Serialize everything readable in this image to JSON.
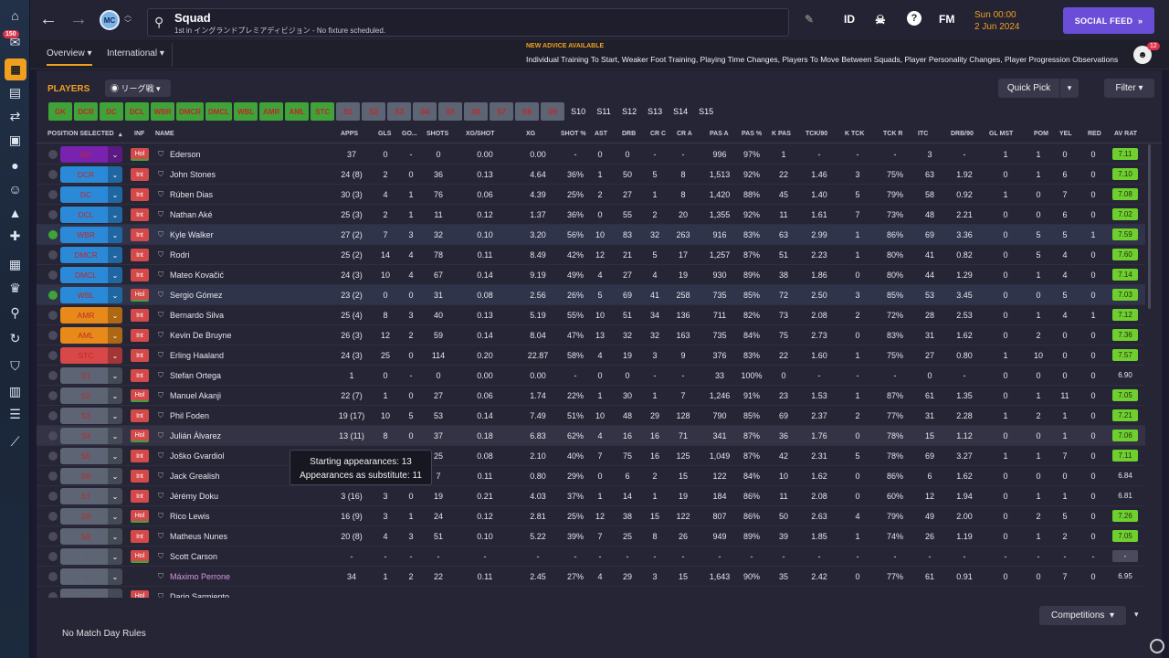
{
  "sidebar": {
    "badge": "150",
    "icons": [
      "home-icon",
      "inbox-icon",
      "squad-icon",
      "tactics-icon",
      "transfer-icon",
      "report-icon",
      "circle-icon",
      "staff-icon",
      "scouting-icon",
      "medical-icon",
      "calendar-icon",
      "trophy-icon",
      "search-icon",
      "refresh-icon",
      "club-icon",
      "finance-icon",
      "news-icon",
      "trend-icon"
    ]
  },
  "topbar": {
    "title": "Squad",
    "subtitle": "1st in イングランドプレミアディビジョン - No fixture scheduled.",
    "id_label": "ID",
    "fm_label": "FM",
    "help_label": "?",
    "date_line1": "Sun 00:00",
    "date_line2": "2 Jun 2024",
    "social_label": "SOCIAL FEED",
    "social_arrow": "»"
  },
  "subbar": {
    "tabs": [
      {
        "label": "Overview"
      },
      {
        "label": "International"
      }
    ],
    "advice_title": "NEW ADVICE AVAILABLE",
    "advice_text": "Individual Training To Start, Weaker Foot Training, Playing Time Changes, Players To Move Between Squads, Player Personality Changes, Player Progression Observations",
    "advice_count": "12"
  },
  "panel": {
    "title": "PLAYERS",
    "view_select": "リーグ戦",
    "quick_pick": "Quick Pick",
    "filter": "Filter",
    "footer": "No Match Day Rules",
    "competitions": "Competitions"
  },
  "position_chips": [
    {
      "label": "GK",
      "style": "green"
    },
    {
      "label": "DCR",
      "style": "green"
    },
    {
      "label": "DC",
      "style": "green"
    },
    {
      "label": "DCL",
      "style": "green"
    },
    {
      "label": "WBR",
      "style": "green"
    },
    {
      "label": "DMCR",
      "style": "green"
    },
    {
      "label": "DMCL",
      "style": "green"
    },
    {
      "label": "WBL",
      "style": "green"
    },
    {
      "label": "AMR",
      "style": "green"
    },
    {
      "label": "AML",
      "style": "green"
    },
    {
      "label": "STC",
      "style": "green"
    },
    {
      "label": "S1",
      "style": "grey"
    },
    {
      "label": "S2",
      "style": "grey"
    },
    {
      "label": "S3",
      "style": "grey"
    },
    {
      "label": "S4",
      "style": "grey"
    },
    {
      "label": "S5",
      "style": "grey"
    },
    {
      "label": "S6",
      "style": "grey"
    },
    {
      "label": "S7",
      "style": "grey"
    },
    {
      "label": "S8",
      "style": "grey"
    },
    {
      "label": "S9",
      "style": "grey"
    },
    {
      "label": "S10",
      "style": "dark"
    },
    {
      "label": "S11",
      "style": "dark"
    },
    {
      "label": "S12",
      "style": "dark"
    },
    {
      "label": "S13",
      "style": "dark"
    },
    {
      "label": "S14",
      "style": "dark"
    },
    {
      "label": "S15",
      "style": "dark"
    }
  ],
  "columns": [
    "POSITION SELECTED",
    "INF",
    "NAME",
    "APPS",
    "GLS",
    "GO...",
    "SHOTS",
    "XG/SHOT",
    "XG",
    "SHOT %",
    "AST",
    "DRB",
    "CR C",
    "CR A",
    "PAS A",
    "PAS %",
    "K PAS",
    "TCK/90",
    "K TCK",
    "TCK R",
    "ITC",
    "DRB/90",
    "GL MST",
    "POM",
    "YEL",
    "RED",
    "AV RAT"
  ],
  "players": [
    {
      "pos": "GK",
      "pos_color": "#7a22b0",
      "inf": "Hol",
      "name": "Ederson",
      "stats": [
        "37",
        "0",
        "-",
        "0",
        "0.00",
        "0.00",
        "-",
        "0",
        "0",
        "-",
        "-",
        "996",
        "97%",
        "1",
        "-",
        "-",
        "-",
        "3",
        "-",
        "1",
        "1",
        "0",
        "0"
      ],
      "rating": "7.11",
      "rstyle": "good"
    },
    {
      "pos": "DCR",
      "pos_color": "#2b8ad8",
      "inf": "Int",
      "name": "John Stones",
      "stats": [
        "24 (8)",
        "2",
        "0",
        "36",
        "0.13",
        "4.64",
        "36%",
        "1",
        "50",
        "5",
        "8",
        "1,513",
        "92%",
        "22",
        "1.46",
        "3",
        "75%",
        "63",
        "1.92",
        "0",
        "1",
        "6",
        "0"
      ],
      "rating": "7.10",
      "rstyle": "good"
    },
    {
      "pos": "DC",
      "pos_color": "#2b8ad8",
      "inf": "Int",
      "name": "Rúben Dias",
      "stats": [
        "30 (3)",
        "4",
        "1",
        "76",
        "0.06",
        "4.39",
        "25%",
        "2",
        "27",
        "1",
        "8",
        "1,420",
        "88%",
        "45",
        "1.40",
        "5",
        "79%",
        "58",
        "0.92",
        "1",
        "0",
        "7",
        "0"
      ],
      "rating": "7.08",
      "rstyle": "good"
    },
    {
      "pos": "DCL",
      "pos_color": "#2b8ad8",
      "inf": "Int",
      "name": "Nathan Aké",
      "stats": [
        "25 (3)",
        "2",
        "1",
        "11",
        "0.12",
        "1.37",
        "36%",
        "0",
        "55",
        "2",
        "20",
        "1,355",
        "92%",
        "11",
        "1.61",
        "7",
        "73%",
        "48",
        "2.21",
        "0",
        "0",
        "6",
        "0"
      ],
      "rating": "7.02",
      "rstyle": "good"
    },
    {
      "pos": "WBR",
      "pos_color": "#2b8ad8",
      "inf": "Int",
      "name": "Kyle Walker",
      "stats": [
        "27 (2)",
        "7",
        "3",
        "32",
        "0.10",
        "3.20",
        "56%",
        "10",
        "83",
        "32",
        "263",
        "916",
        "83%",
        "63",
        "2.99",
        "1",
        "86%",
        "69",
        "3.36",
        "0",
        "5",
        "5",
        "1"
      ],
      "rating": "7.59",
      "rstyle": "good",
      "sel": true,
      "check": true
    },
    {
      "pos": "DMCR",
      "pos_color": "#2b8ad8",
      "inf": "Int",
      "name": "Rodri",
      "stats": [
        "25 (2)",
        "14",
        "4",
        "78",
        "0.11",
        "8.49",
        "42%",
        "12",
        "21",
        "5",
        "17",
        "1,257",
        "87%",
        "51",
        "2.23",
        "1",
        "80%",
        "41",
        "0.82",
        "0",
        "5",
        "4",
        "0"
      ],
      "rating": "7.60",
      "rstyle": "good"
    },
    {
      "pos": "DMCL",
      "pos_color": "#2b8ad8",
      "inf": "Int",
      "name": "Mateo Kovačić",
      "stats": [
        "24 (3)",
        "10",
        "4",
        "67",
        "0.14",
        "9.19",
        "49%",
        "4",
        "27",
        "4",
        "19",
        "930",
        "89%",
        "38",
        "1.86",
        "0",
        "80%",
        "44",
        "1.29",
        "0",
        "1",
        "4",
        "0"
      ],
      "rating": "7.14",
      "rstyle": "good"
    },
    {
      "pos": "WBL",
      "pos_color": "#2b8ad8",
      "inf": "Hol",
      "name": "Sergio Gómez",
      "stats": [
        "23 (2)",
        "0",
        "0",
        "31",
        "0.08",
        "2.56",
        "26%",
        "5",
        "69",
        "41",
        "258",
        "735",
        "85%",
        "72",
        "2.50",
        "3",
        "85%",
        "53",
        "3.45",
        "0",
        "0",
        "5",
        "0"
      ],
      "rating": "7.03",
      "rstyle": "good",
      "sel": true,
      "check": true
    },
    {
      "pos": "AMR",
      "pos_color": "#e88a1a",
      "inf": "Int",
      "name": "Bernardo Silva",
      "stats": [
        "25 (4)",
        "8",
        "3",
        "40",
        "0.13",
        "5.19",
        "55%",
        "10",
        "51",
        "34",
        "136",
        "711",
        "82%",
        "73",
        "2.08",
        "2",
        "72%",
        "28",
        "2.53",
        "0",
        "1",
        "4",
        "1"
      ],
      "rating": "7.12",
      "rstyle": "good"
    },
    {
      "pos": "AML",
      "pos_color": "#e88a1a",
      "inf": "Int",
      "name": "Kevin De Bruyne",
      "stats": [
        "26 (3)",
        "12",
        "2",
        "59",
        "0.14",
        "8.04",
        "47%",
        "13",
        "32",
        "32",
        "163",
        "735",
        "84%",
        "75",
        "2.73",
        "0",
        "83%",
        "31",
        "1.62",
        "0",
        "2",
        "0",
        "0"
      ],
      "rating": "7.36",
      "rstyle": "good"
    },
    {
      "pos": "STC",
      "pos_color": "#d84848",
      "inf": "Int",
      "name": "Erling Haaland",
      "stats": [
        "24 (3)",
        "25",
        "0",
        "114",
        "0.20",
        "22.87",
        "58%",
        "4",
        "19",
        "3",
        "9",
        "376",
        "83%",
        "22",
        "1.60",
        "1",
        "75%",
        "27",
        "0.80",
        "1",
        "10",
        "0",
        "0"
      ],
      "rating": "7.57",
      "rstyle": "good"
    },
    {
      "pos": "S1",
      "pos_color": "#5d6473",
      "inf": "Int",
      "name": "Stefan Ortega",
      "stats": [
        "1",
        "0",
        "-",
        "0",
        "0.00",
        "0.00",
        "-",
        "0",
        "0",
        "-",
        "-",
        "33",
        "100%",
        "0",
        "-",
        "-",
        "-",
        "0",
        "-",
        "0",
        "0",
        "0",
        "0"
      ],
      "rating": "6.90",
      "rstyle": "plain"
    },
    {
      "pos": "S2",
      "pos_color": "#5d6473",
      "inf": "Hol",
      "name": "Manuel Akanji",
      "stats": [
        "22 (7)",
        "1",
        "0",
        "27",
        "0.06",
        "1.74",
        "22%",
        "1",
        "30",
        "1",
        "7",
        "1,246",
        "91%",
        "23",
        "1.53",
        "1",
        "87%",
        "61",
        "1.35",
        "0",
        "1",
        "11",
        "0"
      ],
      "rating": "7.05",
      "rstyle": "good"
    },
    {
      "pos": "S3",
      "pos_color": "#5d6473",
      "inf": "Int",
      "name": "Phil Foden",
      "stats": [
        "19 (17)",
        "10",
        "5",
        "53",
        "0.14",
        "7.49",
        "51%",
        "10",
        "48",
        "29",
        "128",
        "790",
        "85%",
        "69",
        "2.37",
        "2",
        "77%",
        "31",
        "2.28",
        "1",
        "2",
        "1",
        "0"
      ],
      "rating": "7.21",
      "rstyle": "good"
    },
    {
      "pos": "S4",
      "pos_color": "#5d6473",
      "inf": "Hol",
      "name": "Julián Álvarez",
      "stats": [
        "13 (11)",
        "8",
        "0",
        "37",
        "0.18",
        "6.83",
        "62%",
        "4",
        "16",
        "16",
        "71",
        "341",
        "87%",
        "36",
        "1.76",
        "0",
        "78%",
        "15",
        "1.12",
        "0",
        "0",
        "1",
        "0"
      ],
      "rating": "7.06",
      "rstyle": "good",
      "hl": true
    },
    {
      "pos": "S5",
      "pos_color": "#5d6473",
      "inf": "Int",
      "name": "Joško Gvardiol",
      "stats": [
        "",
        "",
        "",
        "25",
        "0.08",
        "2.10",
        "40%",
        "7",
        "75",
        "16",
        "125",
        "1,049",
        "87%",
        "42",
        "2.31",
        "5",
        "78%",
        "69",
        "3.27",
        "1",
        "1",
        "7",
        "0"
      ],
      "rating": "7.11",
      "rstyle": "good"
    },
    {
      "pos": "S6",
      "pos_color": "#5d6473",
      "inf": "Int",
      "name": "Jack Grealish",
      "stats": [
        "",
        "",
        "",
        "7",
        "0.11",
        "0.80",
        "29%",
        "0",
        "6",
        "2",
        "15",
        "122",
        "84%",
        "10",
        "1.62",
        "0",
        "86%",
        "6",
        "1.62",
        "0",
        "0",
        "0",
        "0"
      ],
      "rating": "6.84",
      "rstyle": "plain"
    },
    {
      "pos": "S7",
      "pos_color": "#5d6473",
      "inf": "Int",
      "name": "Jérémy Doku",
      "stats": [
        "3 (16)",
        "3",
        "0",
        "19",
        "0.21",
        "4.03",
        "37%",
        "1",
        "14",
        "1",
        "19",
        "184",
        "86%",
        "11",
        "2.08",
        "0",
        "60%",
        "12",
        "1.94",
        "0",
        "1",
        "1",
        "0"
      ],
      "rating": "6.81",
      "rstyle": "plain"
    },
    {
      "pos": "S8",
      "pos_color": "#5d6473",
      "inf": "Hol",
      "name": "Rico Lewis",
      "stats": [
        "16 (9)",
        "3",
        "1",
        "24",
        "0.12",
        "2.81",
        "25%",
        "12",
        "38",
        "15",
        "122",
        "807",
        "86%",
        "50",
        "2.63",
        "4",
        "79%",
        "49",
        "2.00",
        "0",
        "2",
        "5",
        "0"
      ],
      "rating": "7.26",
      "rstyle": "good"
    },
    {
      "pos": "S9",
      "pos_color": "#5d6473",
      "inf": "Int",
      "name": "Matheus Nunes",
      "stats": [
        "20 (8)",
        "4",
        "3",
        "51",
        "0.10",
        "5.22",
        "39%",
        "7",
        "25",
        "8",
        "26",
        "949",
        "89%",
        "39",
        "1.85",
        "1",
        "74%",
        "26",
        "1.19",
        "0",
        "1",
        "2",
        "0"
      ],
      "rating": "7.05",
      "rstyle": "good"
    },
    {
      "pos": "-",
      "pos_color": "#5d6473",
      "inf": "Hol",
      "name": "Scott Carson",
      "stats": [
        "-",
        "-",
        "-",
        "-",
        "-",
        "-",
        "-",
        "-",
        "-",
        "-",
        "-",
        "-",
        "-",
        "-",
        "-",
        "-",
        "-",
        "-",
        "-",
        "-",
        "-",
        "-",
        "-"
      ],
      "rating": "-",
      "rstyle": "none"
    },
    {
      "pos": "-",
      "pos_color": "#5d6473",
      "inf": "",
      "name": "Máximo Perrone",
      "name_color": "#d89adf",
      "stats": [
        "34",
        "1",
        "2",
        "22",
        "0.11",
        "2.45",
        "27%",
        "4",
        "29",
        "3",
        "15",
        "1,643",
        "90%",
        "35",
        "2.42",
        "0",
        "77%",
        "61",
        "0.91",
        "0",
        "0",
        "7",
        "0"
      ],
      "rating": "6.95",
      "rstyle": "plain"
    },
    {
      "pos": "-",
      "pos_color": "#5d6473",
      "inf": "Hol",
      "name": "Dario Sarmiento",
      "stats": [
        "",
        "",
        "",
        "",
        "",
        "",
        "",
        "",
        "",
        "",
        "",
        "",
        "",
        "",
        "",
        "",
        "",
        "",
        "",
        "",
        "",
        "",
        ""
      ],
      "rating": "",
      "rstyle": "plain"
    }
  ],
  "tooltip": {
    "line1": "Starting appearances: 13",
    "line2": "Appearances as substitute: 11"
  }
}
